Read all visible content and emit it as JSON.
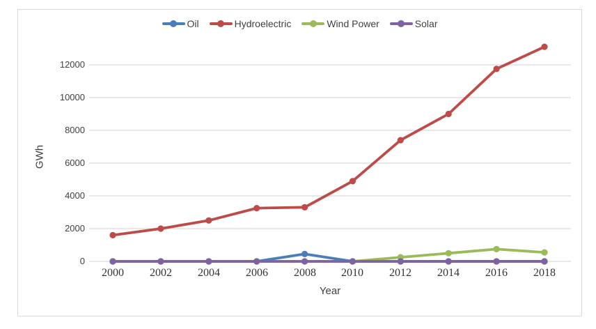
{
  "chart_data": {
    "type": "line",
    "title": "",
    "xlabel": "Year",
    "ylabel": "GWh",
    "x_labels": [
      "2000",
      "2002",
      "2004",
      "2006",
      "2008",
      "2010",
      "2012",
      "2014",
      "2016",
      "2018"
    ],
    "yticks": [
      0,
      2000,
      4000,
      6000,
      8000,
      10000,
      12000
    ],
    "ylim": [
      0,
      13500
    ],
    "grid": true,
    "legend_position": "top",
    "colors": {
      "grid": "#d9d9d9",
      "axis_line": "#d9d9d9"
    },
    "series": [
      {
        "name": "Oil",
        "color": "#4a7ebb",
        "values": [
          0,
          0,
          0,
          0,
          450,
          0,
          0,
          0,
          0,
          0
        ]
      },
      {
        "name": "Hydroelectric",
        "color": "#be4b48",
        "values": [
          1600,
          2000,
          2500,
          3250,
          3300,
          4900,
          7400,
          9000,
          11750,
          13100
        ]
      },
      {
        "name": "Wind Power",
        "color": "#9bbb59",
        "values": [
          0,
          0,
          0,
          0,
          0,
          0,
          250,
          500,
          750,
          550
        ]
      },
      {
        "name": "Solar",
        "color": "#7e62a1",
        "values": [
          0,
          0,
          0,
          0,
          0,
          0,
          0,
          0,
          0,
          0
        ]
      }
    ]
  }
}
